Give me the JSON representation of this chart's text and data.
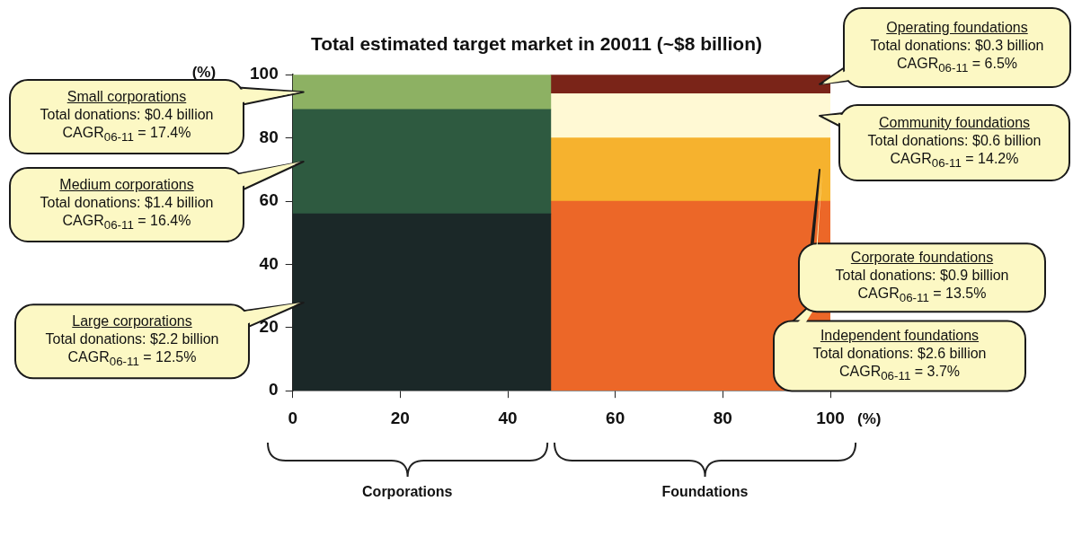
{
  "chart_data": {
    "type": "bar",
    "stacked": true,
    "title": "Total estimated target market in 20011 (~$8 billion)",
    "ylabel": "(%)",
    "xlabel": "(%)",
    "x": [
      24,
      74
    ],
    "xlim": [
      0,
      100
    ],
    "xticks": [
      0,
      20,
      40,
      60,
      80,
      100
    ],
    "ylim": [
      0,
      100
    ],
    "yticks": [
      0,
      20,
      40,
      60,
      80,
      100
    ],
    "legend": false,
    "series": [
      {
        "color": "#1b2828",
        "values": [
          56,
          null
        ]
      },
      {
        "color": "#2e5a40",
        "values": [
          33,
          null
        ]
      },
      {
        "color": "#8db163",
        "values": [
          11,
          null
        ]
      },
      {
        "color": "#ec6728",
        "values": [
          null,
          60
        ]
      },
      {
        "color": "#f6b22e",
        "values": [
          null,
          20
        ]
      },
      {
        "color": "#fff9d4",
        "values": [
          null,
          14
        ]
      },
      {
        "color": "#7a2418",
        "values": [
          null,
          6
        ]
      }
    ],
    "annotations": [
      "Large corporations\nTotal donations: $2.2 billion\nCAGR$_{06-11}$ = 12.5%",
      "Medium corporations\nTotal donations: $1.4 billion\nCAGR$_{06-11}$ = 16.4%",
      "Small corporations\nTotal donations: $0.4 billion\nCAGR$_{06-11}$ = 17.4%",
      "Independent foundations\nTotal donations: $2.6 billion\nCAGR$_{06-11}$ = 3.7%",
      "Corporate foundations\nTotal donations: $0.9 billion\nCAGR$_{06-11}$ = 13.5%",
      "Community foundations\nTotal donations: $0.6 billion\nCAGR$_{06-11}$ = 14.2%",
      "Operating foundations\nTotal donations: $0.3 billion\nCAGR$_{06-11}$ = 6.5%",
      "Corporations",
      "Foundations"
    ]
  }
}
